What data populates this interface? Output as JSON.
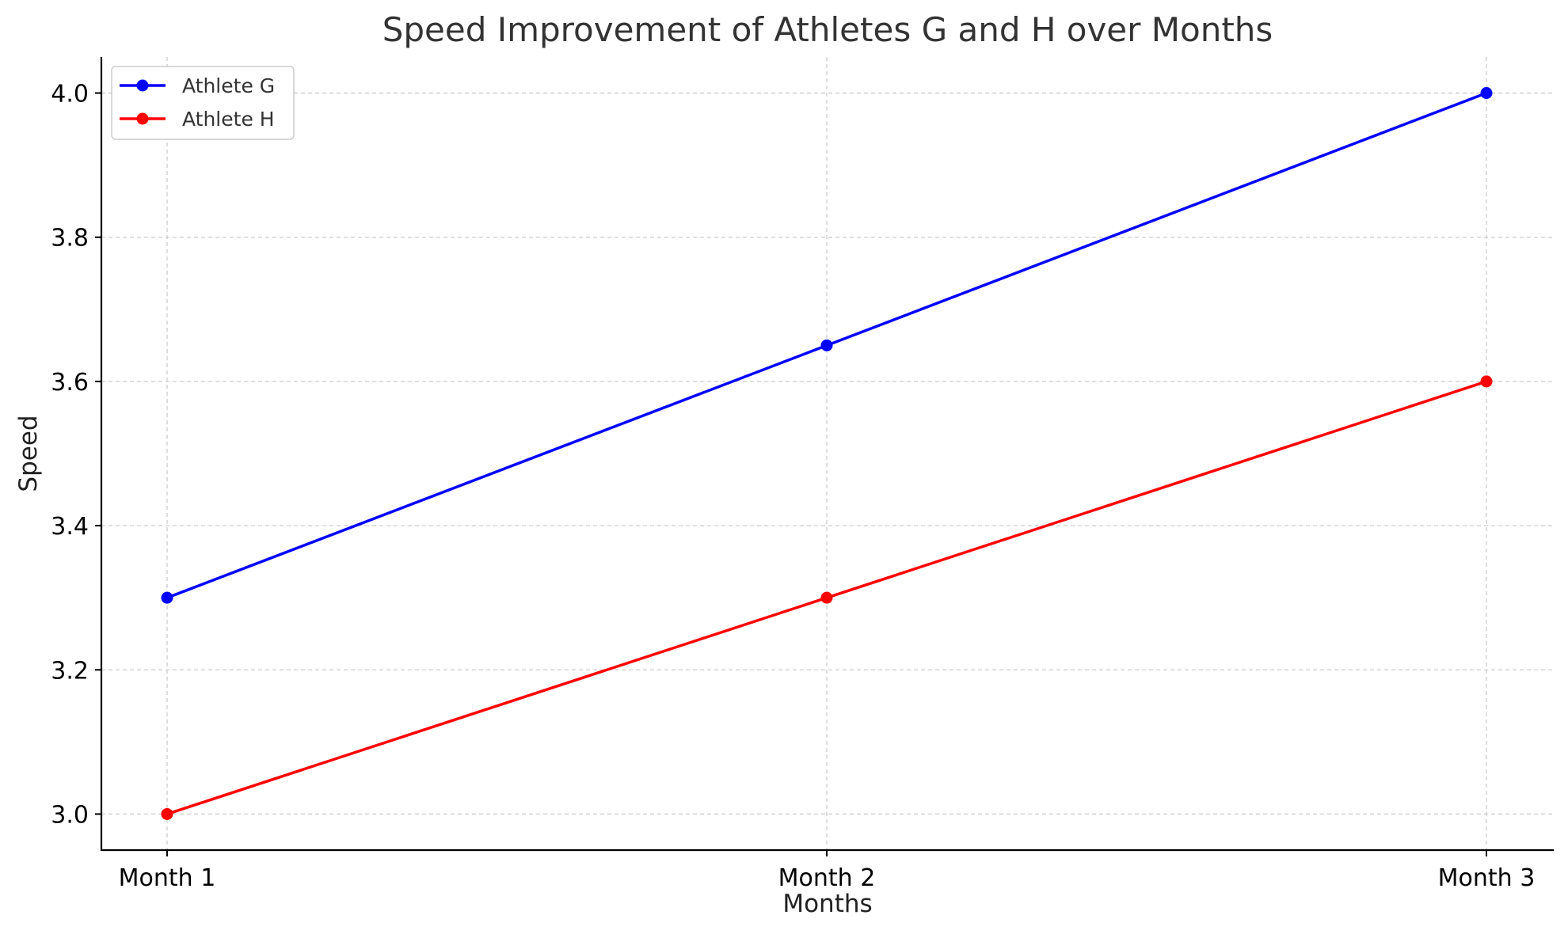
{
  "chart_data": {
    "type": "line",
    "title": "Speed Improvement of Athletes G and H over Months",
    "xlabel": "Months",
    "ylabel": "Speed",
    "categories": [
      "Month 1",
      "Month 2",
      "Month 3"
    ],
    "ylim": [
      2.95,
      4.05
    ],
    "yticks": [
      "3.0",
      "3.2",
      "3.4",
      "3.6",
      "3.8",
      "4.0"
    ],
    "grid": true,
    "legend_position": "top-left",
    "series": [
      {
        "name": "Athlete G",
        "color": "#0000ff",
        "marker": "circle",
        "values": [
          3.3,
          3.65,
          4.0
        ]
      },
      {
        "name": "Athlete H",
        "color": "#ff0000",
        "marker": "circle",
        "values": [
          3.0,
          3.3,
          3.6
        ]
      }
    ]
  }
}
